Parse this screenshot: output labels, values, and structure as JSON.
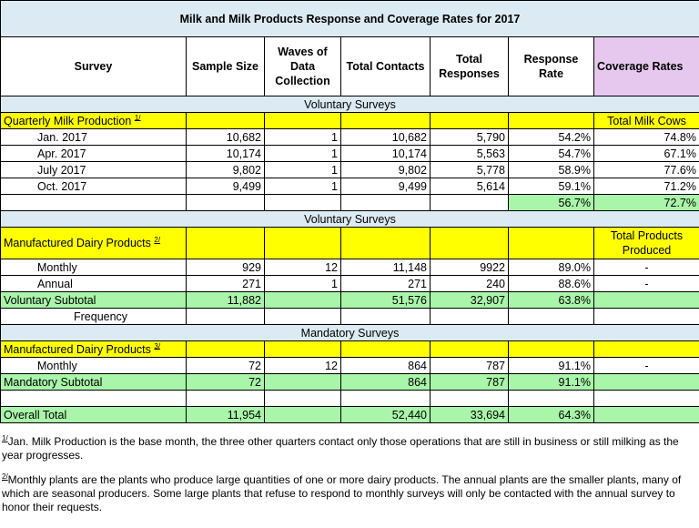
{
  "title": "Milk and Milk Products Response and Coverage Rates for 2017",
  "headers": [
    "Survey",
    "Sample Size",
    "Waves of Data Collection",
    "Total Contacts",
    "Total Responses",
    "Response Rate",
    "Coverage Rates"
  ],
  "sections": {
    "voluntary1": "Voluntary Surveys",
    "voluntary2": "Voluntary Surveys",
    "mandatory": "Mandatory Surveys"
  },
  "quarterly": {
    "label": "Quarterly Milk Production",
    "sup": "1/",
    "coverage_label": "Total Milk Cows",
    "rows": [
      {
        "name": "Jan. 2017",
        "sample": "10,682",
        "waves": "1",
        "contacts": "10,682",
        "responses": "5,790",
        "rate": "54.2%",
        "coverage": "74.8%"
      },
      {
        "name": "Apr. 2017",
        "sample": "10,174",
        "waves": "1",
        "contacts": "10,174",
        "responses": "5,563",
        "rate": "54.7%",
        "coverage": "67.1%"
      },
      {
        "name": "July 2017",
        "sample": "9,802",
        "waves": "1",
        "contacts": "9,802",
        "responses": "5,778",
        "rate": "58.9%",
        "coverage": "77.6%"
      },
      {
        "name": "Oct. 2017",
        "sample": "9,499",
        "waves": "1",
        "contacts": "9,499",
        "responses": "5,614",
        "rate": "59.1%",
        "coverage": "71.2%"
      }
    ],
    "avg_rate": "56.7%",
    "avg_coverage": "72.7%"
  },
  "manufactured": {
    "label": "Manufactured Dairy Products",
    "sup": "2/",
    "coverage_label": "Total Products Produced",
    "rows": [
      {
        "name": "Monthly",
        "sample": "929",
        "waves": "12",
        "contacts": "11,148",
        "responses": "9922",
        "rate": "89.0%",
        "coverage": "-"
      },
      {
        "name": "Annual",
        "sample": "271",
        "waves": "1",
        "contacts": "271",
        "responses": "240",
        "rate": "88.6%",
        "coverage": "-"
      }
    ]
  },
  "voluntary_subtotal": {
    "label": "Voluntary Subtotal",
    "sample": "11,882",
    "contacts": "51,576",
    "responses": "32,907",
    "rate": "63.8%"
  },
  "frequency_label": "Frequency",
  "mandatory": {
    "label": "Manufactured Dairy Products",
    "sup": "3/",
    "row": {
      "name": "Monthly",
      "sample": "72",
      "waves": "12",
      "contacts": "864",
      "responses": "787",
      "rate": "91.1%",
      "coverage": "-"
    },
    "subtotal": {
      "label": "Mandatory Subtotal",
      "sample": "72",
      "contacts": "864",
      "responses": "787",
      "rate": "91.1%"
    }
  },
  "overall": {
    "label": "Overall Total",
    "sample": "11,954",
    "contacts": "52,440",
    "responses": "33,694",
    "rate": "64.3%"
  },
  "footnotes": {
    "fn1_mark": "1/",
    "fn1": "Jan. Milk Production is the base month, the three other quarters contact only those operations that are still in business or still milking as the year progresses.",
    "fn2_mark": "2/",
    "fn2": "Monthly plants are the plants who produce large quantities of one or more dairy products. The annual plants are the smaller plants, many of which are seasonal producers. Some large plants that refuse to respond to monthly surveys will only be contacted with the annual survey to honor their requests."
  }
}
